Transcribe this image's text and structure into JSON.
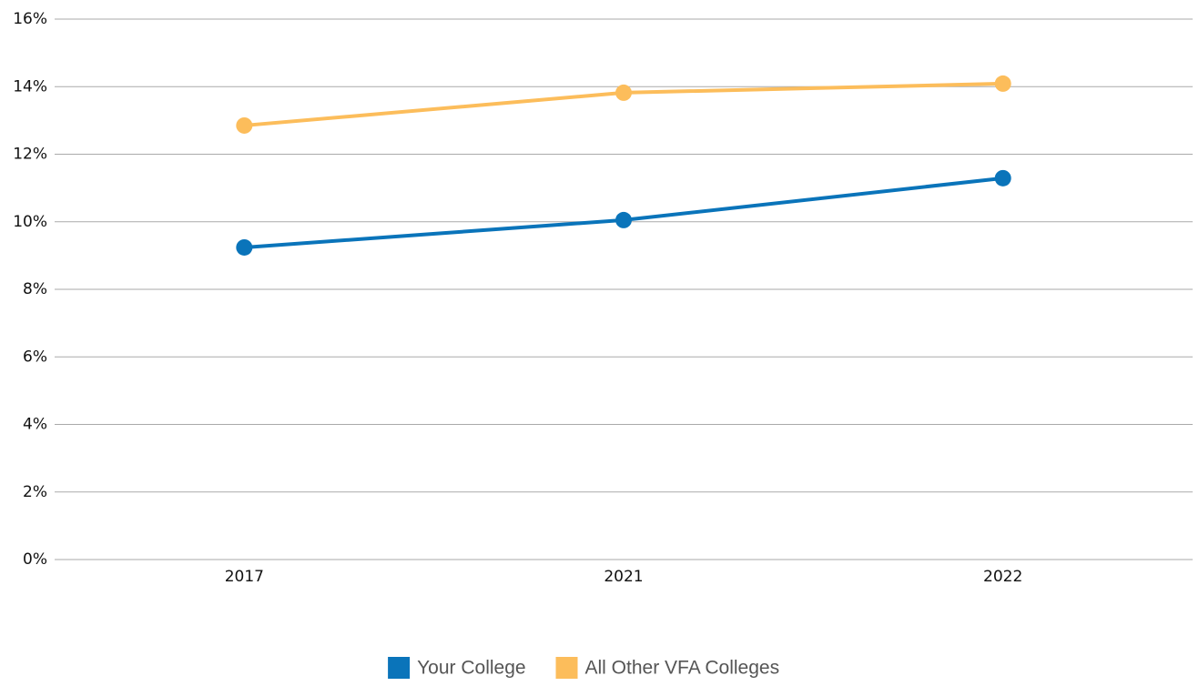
{
  "chart_data": {
    "type": "line",
    "categories": [
      "2017",
      "2021",
      "2022"
    ],
    "series": [
      {
        "name": "Your College",
        "color": "#0a74ba",
        "values": [
          9.24,
          10.05,
          11.29
        ]
      },
      {
        "name": "All Other VFA Colleges",
        "color": "#fcbd5b",
        "values": [
          12.85,
          13.82,
          14.09
        ]
      }
    ],
    "ylim": [
      0,
      16
    ],
    "yticks": [
      {
        "value": 0,
        "label": "0%"
      },
      {
        "value": 2,
        "label": "2%"
      },
      {
        "value": 4,
        "label": "4%"
      },
      {
        "value": 6,
        "label": "6%"
      },
      {
        "value": 8,
        "label": "8%"
      },
      {
        "value": 10,
        "label": "10%"
      },
      {
        "value": 12,
        "label": "12%"
      },
      {
        "value": 14,
        "label": "14%"
      },
      {
        "value": 16,
        "label": "16%"
      }
    ],
    "grid": true,
    "legend": "bottom"
  }
}
